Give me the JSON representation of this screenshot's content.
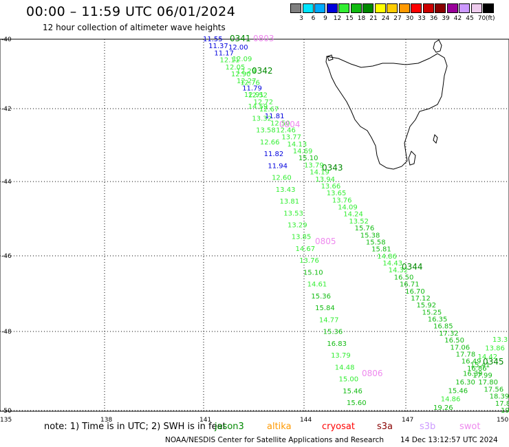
{
  "header": {
    "title": "00:00 – 11:59 UTC 06/01/2024",
    "subtitle": "12 hour collection of altimeter wave heights"
  },
  "legend": {
    "unit": "(ft)",
    "bins": [
      {
        "label": "3",
        "color": "#7f7f7f"
      },
      {
        "label": "6",
        "color": "#00e5ff"
      },
      {
        "label": "9",
        "color": "#00aaff"
      },
      {
        "label": "12",
        "color": "#0000dd"
      },
      {
        "label": "15",
        "color": "#33ee33"
      },
      {
        "label": "18",
        "color": "#11bb11"
      },
      {
        "label": "21",
        "color": "#008800"
      },
      {
        "label": "24",
        "color": "#ffff00"
      },
      {
        "label": "27",
        "color": "#ffcc00"
      },
      {
        "label": "30",
        "color": "#ff9900"
      },
      {
        "label": "33",
        "color": "#ff0000"
      },
      {
        "label": "36",
        "color": "#cc0000"
      },
      {
        "label": "39",
        "color": "#880000"
      },
      {
        "label": "42",
        "color": "#990099"
      },
      {
        "label": "45",
        "color": "#cc99ff"
      },
      {
        "label": "70",
        "color": "#eeccee"
      },
      {
        "label": "",
        "color": "#000000"
      }
    ]
  },
  "axes": {
    "lat_labels": [
      "-40",
      "-42",
      "-44",
      "-46",
      "-48",
      "-50"
    ],
    "lon_labels": [
      "135",
      "138",
      "141",
      "144",
      "147",
      "150"
    ]
  },
  "passes": [
    {
      "label": "0341",
      "color": "#008800"
    },
    {
      "label": "0803",
      "color": "#ee88ee"
    },
    {
      "label": "0342",
      "color": "#008800"
    },
    {
      "label": "0804",
      "color": "#ee88ee"
    },
    {
      "label": "0343",
      "color": "#008800"
    },
    {
      "label": "0805",
      "color": "#ee88ee"
    },
    {
      "label": "0344",
      "color": "#008800"
    },
    {
      "label": "0806",
      "color": "#ee88ee"
    },
    {
      "label": "0345",
      "color": "#008800"
    }
  ],
  "track_a": [
    {
      "v": "11.55",
      "c": "#0000dd"
    },
    {
      "v": "11.37",
      "c": "#0000dd"
    },
    {
      "v": "11.17",
      "c": "#0000dd"
    },
    {
      "v": "12.11",
      "c": "#33ee33"
    },
    {
      "v": "12.05",
      "c": "#33ee33"
    },
    {
      "v": "12.90",
      "c": "#33ee33"
    },
    {
      "v": "12.27",
      "c": "#33ee33"
    },
    {
      "v": "11.79",
      "c": "#0000dd"
    },
    {
      "v": "12.52",
      "c": "#33ee33"
    },
    {
      "v": "12.72",
      "c": "#33ee33"
    },
    {
      "v": "12.67",
      "c": "#33ee33"
    },
    {
      "v": "11.81",
      "c": "#0000dd"
    },
    {
      "v": "12.50",
      "c": "#33ee33"
    },
    {
      "v": "12.46",
      "c": "#33ee33"
    },
    {
      "v": "13.77",
      "c": "#33ee33"
    },
    {
      "v": "14.13",
      "c": "#33ee33"
    },
    {
      "v": "14.69",
      "c": "#33ee33"
    },
    {
      "v": "15.10",
      "c": "#11bb11"
    },
    {
      "v": "13.79",
      "c": "#33ee33"
    },
    {
      "v": "14.19",
      "c": "#33ee33"
    },
    {
      "v": "13.94",
      "c": "#33ee33"
    },
    {
      "v": "13.66",
      "c": "#33ee33"
    },
    {
      "v": "13.65",
      "c": "#33ee33"
    },
    {
      "v": "13.76",
      "c": "#33ee33"
    },
    {
      "v": "14.09",
      "c": "#33ee33"
    },
    {
      "v": "14.24",
      "c": "#33ee33"
    },
    {
      "v": "13.52",
      "c": "#33ee33"
    },
    {
      "v": "15.76",
      "c": "#11bb11"
    },
    {
      "v": "15.38",
      "c": "#11bb11"
    },
    {
      "v": "15.58",
      "c": "#11bb11"
    },
    {
      "v": "15.81",
      "c": "#11bb11"
    },
    {
      "v": "14.86",
      "c": "#33ee33"
    },
    {
      "v": "14.43",
      "c": "#33ee33"
    },
    {
      "v": "14.32",
      "c": "#33ee33"
    },
    {
      "v": "16.50",
      "c": "#11bb11"
    },
    {
      "v": "16.71",
      "c": "#11bb11"
    },
    {
      "v": "16.70",
      "c": "#11bb11"
    },
    {
      "v": "17.12",
      "c": "#11bb11"
    },
    {
      "v": "15.92",
      "c": "#11bb11"
    },
    {
      "v": "15.25",
      "c": "#11bb11"
    },
    {
      "v": "16.35",
      "c": "#11bb11"
    },
    {
      "v": "16.85",
      "c": "#11bb11"
    },
    {
      "v": "17.32",
      "c": "#11bb11"
    },
    {
      "v": "16.50",
      "c": "#11bb11"
    },
    {
      "v": "17.06",
      "c": "#11bb11"
    },
    {
      "v": "17.78",
      "c": "#11bb11"
    },
    {
      "v": "16.49",
      "c": "#11bb11"
    },
    {
      "v": "16.86",
      "c": "#11bb11"
    },
    {
      "v": "17.99",
      "c": "#11bb11"
    },
    {
      "v": "17.80",
      "c": "#11bb11"
    },
    {
      "v": "17.56",
      "c": "#11bb11"
    },
    {
      "v": "18.39",
      "c": "#11bb11"
    },
    {
      "v": "17.8",
      "c": "#11bb11"
    },
    {
      "v": "19",
      "c": "#11bb11"
    }
  ],
  "track_b": [
    {
      "v": "12.00",
      "c": "#0000dd"
    },
    {
      "v": "12.09",
      "c": "#33ee33"
    },
    {
      "v": "12.29",
      "c": "#33ee33"
    },
    {
      "v": "12.76",
      "c": "#33ee33"
    },
    {
      "v": "12.91",
      "c": "#33ee33"
    },
    {
      "v": "14.59",
      "c": "#33ee33"
    },
    {
      "v": "13.32",
      "c": "#33ee33"
    },
    {
      "v": "13.58",
      "c": "#33ee33"
    },
    {
      "v": "12.66",
      "c": "#33ee33"
    },
    {
      "v": "11.82",
      "c": "#0000dd"
    },
    {
      "v": "11.94",
      "c": "#0000dd"
    },
    {
      "v": "12.60",
      "c": "#33ee33"
    },
    {
      "v": "13.43",
      "c": "#33ee33"
    },
    {
      "v": "13.81",
      "c": "#33ee33"
    },
    {
      "v": "13.53",
      "c": "#33ee33"
    },
    {
      "v": "13.29",
      "c": "#33ee33"
    },
    {
      "v": "13.85",
      "c": "#33ee33"
    },
    {
      "v": "14.67",
      "c": "#33ee33"
    },
    {
      "v": "13.76",
      "c": "#33ee33"
    },
    {
      "v": "15.10",
      "c": "#11bb11"
    },
    {
      "v": "14.61",
      "c": "#33ee33"
    },
    {
      "v": "15.36",
      "c": "#11bb11"
    },
    {
      "v": "15.84",
      "c": "#11bb11"
    },
    {
      "v": "14.77",
      "c": "#33ee33"
    },
    {
      "v": "15.36",
      "c": "#11bb11"
    },
    {
      "v": "16.83",
      "c": "#11bb11"
    },
    {
      "v": "13.79",
      "c": "#33ee33"
    },
    {
      "v": "14.48",
      "c": "#33ee33"
    },
    {
      "v": "15.00",
      "c": "#33ee33"
    },
    {
      "v": "15.46",
      "c": "#11bb11"
    },
    {
      "v": "15.60",
      "c": "#11bb11"
    }
  ],
  "track_c": [
    {
      "v": "13.3",
      "c": "#33ee33"
    },
    {
      "v": "13.86",
      "c": "#33ee33"
    },
    {
      "v": "14.42",
      "c": "#33ee33"
    },
    {
      "v": "15.41",
      "c": "#11bb11"
    },
    {
      "v": "16.39",
      "c": "#11bb11"
    },
    {
      "v": "16.30",
      "c": "#11bb11"
    },
    {
      "v": "15.46",
      "c": "#11bb11"
    },
    {
      "v": "14.86",
      "c": "#33ee33"
    },
    {
      "v": "19.26",
      "c": "#11bb11"
    }
  ],
  "footer": {
    "note": "note: 1) Time is in UTC; 2) SWH is in feet",
    "satellites": [
      {
        "name": "jason3",
        "color": "#008800"
      },
      {
        "name": "altika",
        "color": "#ff9900"
      },
      {
        "name": "cryosat",
        "color": "#ff0000"
      },
      {
        "name": "s3a",
        "color": "#880000"
      },
      {
        "name": "s3b",
        "color": "#cc99ff"
      },
      {
        "name": "swot",
        "color": "#ee88ee"
      }
    ],
    "credit": "NOAA/NESDIS Center for Satellite Applications and Research",
    "timestamp": "14 Dec 13:12:57 UTC 2024"
  }
}
